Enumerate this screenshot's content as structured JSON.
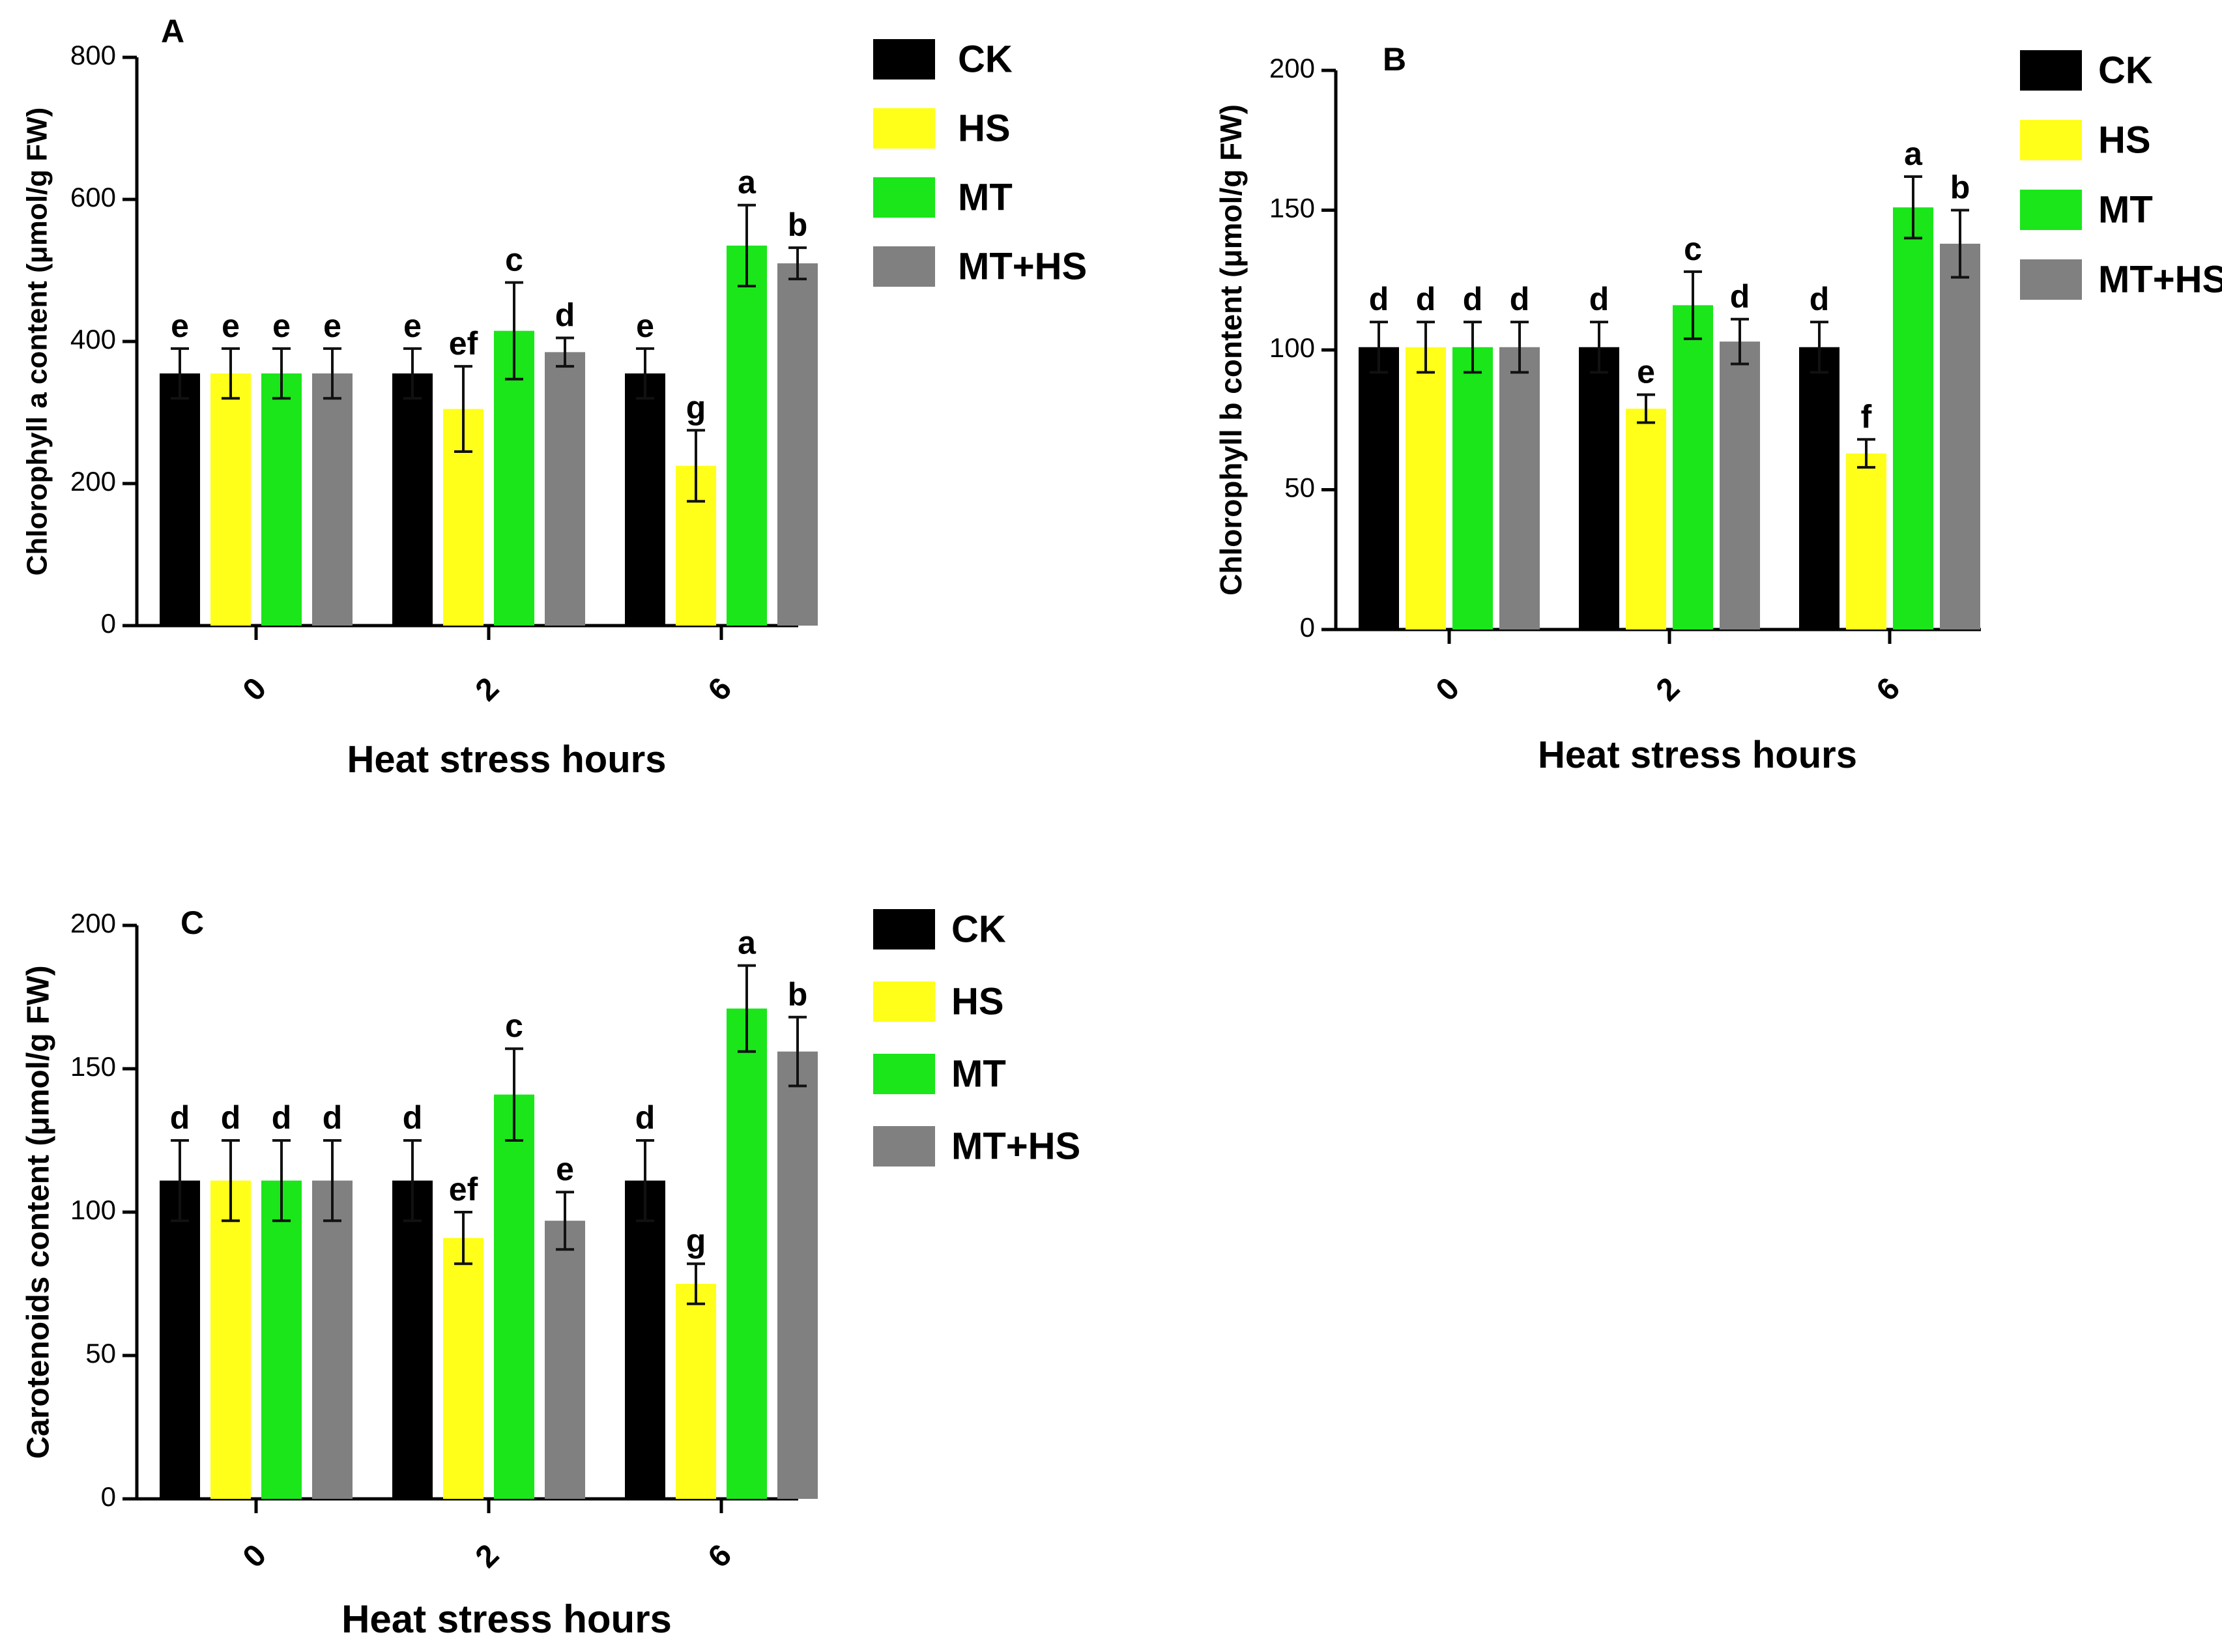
{
  "chart_data": [
    {
      "type": "bar",
      "panel_label": "A",
      "categories": [
        "0",
        "2",
        "6"
      ],
      "xlabel": "Heat stress hours",
      "ylabel": "Chlorophyll a content (μmol/g FW)",
      "ylim": [
        0,
        800
      ],
      "yticks": [
        0,
        200,
        400,
        600,
        800
      ],
      "legend_position": "right",
      "series": [
        {
          "name": "CK",
          "color": "#000000",
          "values": [
            355,
            355,
            355
          ],
          "errors": [
            35,
            35,
            35
          ],
          "letters": [
            "e",
            "e",
            "e"
          ]
        },
        {
          "name": "HS",
          "color": "#ffff1a",
          "values": [
            355,
            305,
            225
          ],
          "errors": [
            35,
            60,
            50
          ],
          "letters": [
            "e",
            "ef",
            "g"
          ]
        },
        {
          "name": "MT",
          "color": "#1ae61a",
          "values": [
            355,
            415,
            535
          ],
          "errors": [
            35,
            68,
            57
          ],
          "letters": [
            "e",
            "c",
            "a"
          ]
        },
        {
          "name": "MT+HS",
          "color": "#808080",
          "values": [
            355,
            385,
            510
          ],
          "errors": [
            35,
            20,
            22
          ],
          "letters": [
            "e",
            "d",
            "b"
          ]
        }
      ]
    },
    {
      "type": "bar",
      "panel_label": "B",
      "categories": [
        "0",
        "2",
        "6"
      ],
      "xlabel": "Heat stress hours",
      "ylabel": "Chlorophyll b content (μmol/g FW)",
      "ylim": [
        0,
        200
      ],
      "yticks": [
        0,
        50,
        100,
        150,
        200
      ],
      "legend_position": "right",
      "series": [
        {
          "name": "CK",
          "color": "#000000",
          "values": [
            101,
            101,
            101
          ],
          "errors": [
            9,
            9,
            9
          ],
          "letters": [
            "d",
            "d",
            "d"
          ]
        },
        {
          "name": "HS",
          "color": "#ffff1a",
          "values": [
            101,
            79,
            63
          ],
          "errors": [
            9,
            5,
            5
          ],
          "letters": [
            "d",
            "e",
            "f"
          ]
        },
        {
          "name": "MT",
          "color": "#1ae61a",
          "values": [
            101,
            116,
            151
          ],
          "errors": [
            9,
            12,
            11
          ],
          "letters": [
            "d",
            "c",
            "a"
          ]
        },
        {
          "name": "MT+HS",
          "color": "#808080",
          "values": [
            101,
            103,
            138
          ],
          "errors": [
            9,
            8,
            12
          ],
          "letters": [
            "d",
            "d",
            "b"
          ]
        }
      ]
    },
    {
      "type": "bar",
      "panel_label": "C",
      "categories": [
        "0",
        "2",
        "6"
      ],
      "xlabel": "Heat stress hours",
      "ylabel": "Carotenoids content (μmol/g FW)",
      "ylim": [
        0,
        200
      ],
      "yticks": [
        0,
        50,
        100,
        150,
        200
      ],
      "legend_position": "right",
      "series": [
        {
          "name": "CK",
          "color": "#000000",
          "values": [
            111,
            111,
            111
          ],
          "errors": [
            14,
            14,
            14
          ],
          "letters": [
            "d",
            "d",
            "d"
          ]
        },
        {
          "name": "HS",
          "color": "#ffff1a",
          "values": [
            111,
            91,
            75
          ],
          "errors": [
            14,
            9,
            7
          ],
          "letters": [
            "d",
            "ef",
            "g"
          ]
        },
        {
          "name": "MT",
          "color": "#1ae61a",
          "values": [
            111,
            141,
            171
          ],
          "errors": [
            14,
            16,
            15
          ],
          "letters": [
            "d",
            "c",
            "a"
          ]
        },
        {
          "name": "MT+HS",
          "color": "#808080",
          "values": [
            111,
            97,
            156
          ],
          "errors": [
            14,
            10,
            12
          ],
          "letters": [
            "d",
            "e",
            "b"
          ]
        }
      ]
    }
  ]
}
